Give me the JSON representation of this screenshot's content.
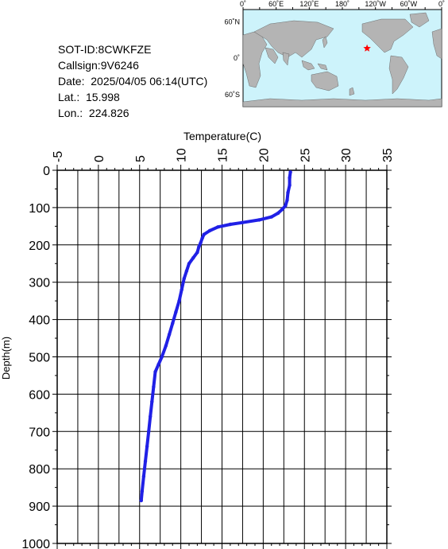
{
  "info": {
    "sot_id": "SOT-ID:8CWKFZE",
    "callsign": "Callsign:9V6246",
    "date": "Date:  2025/04/05 06:14(UTC)",
    "lat": "Lat.:  15.998",
    "lon": "Lon.:  224.826"
  },
  "map": {
    "lon_labels": [
      "0˚",
      "60˚E",
      "120˚E",
      "180˚",
      "120˚W",
      "60˚W",
      "0˚"
    ],
    "lat_labels": [
      "60˚N",
      "0˚",
      "60˚S"
    ],
    "marker": {
      "lat": 15.998,
      "lon": 224.826
    },
    "colors": {
      "ocean": "#cdf3fb",
      "land": "#b4b4b4",
      "marker": "#ff0000"
    }
  },
  "chart_data": {
    "type": "line",
    "xlabel": "Temperature(C)",
    "ylabel": "Depth(m)",
    "xlim": [
      -5,
      35
    ],
    "ylim": [
      0,
      1000
    ],
    "x_ticks": [
      "-5",
      "0",
      "5",
      "10",
      "15",
      "20",
      "25",
      "30",
      "35"
    ],
    "y_ticks": [
      "0",
      "100",
      "200",
      "300",
      "400",
      "500",
      "600",
      "700",
      "800",
      "900",
      "1000"
    ],
    "grid": true,
    "series": [
      {
        "color": "#2020e6",
        "points": [
          [
            23.3,
            5
          ],
          [
            23.2,
            20
          ],
          [
            23.2,
            40
          ],
          [
            23.0,
            60
          ],
          [
            22.9,
            80
          ],
          [
            22.7,
            95
          ],
          [
            22.3,
            105
          ],
          [
            21.8,
            115
          ],
          [
            21.0,
            125
          ],
          [
            19.5,
            133
          ],
          [
            17.5,
            140
          ],
          [
            16.0,
            145
          ],
          [
            14.5,
            152
          ],
          [
            13.5,
            162
          ],
          [
            12.8,
            172
          ],
          [
            12.6,
            182
          ],
          [
            12.4,
            195
          ],
          [
            12.2,
            205
          ],
          [
            12.0,
            220
          ],
          [
            11.5,
            235
          ],
          [
            11.0,
            250
          ],
          [
            10.7,
            270
          ],
          [
            10.4,
            290
          ],
          [
            10.1,
            320
          ],
          [
            9.8,
            350
          ],
          [
            9.4,
            380
          ],
          [
            9.0,
            410
          ],
          [
            8.6,
            440
          ],
          [
            8.2,
            470
          ],
          [
            7.7,
            500
          ],
          [
            7.3,
            520
          ],
          [
            6.9,
            540
          ],
          [
            6.7,
            580
          ],
          [
            6.5,
            620
          ],
          [
            6.3,
            660
          ],
          [
            6.1,
            700
          ],
          [
            5.9,
            740
          ],
          [
            5.7,
            780
          ],
          [
            5.5,
            820
          ],
          [
            5.3,
            860
          ],
          [
            5.2,
            885
          ]
        ]
      }
    ]
  }
}
